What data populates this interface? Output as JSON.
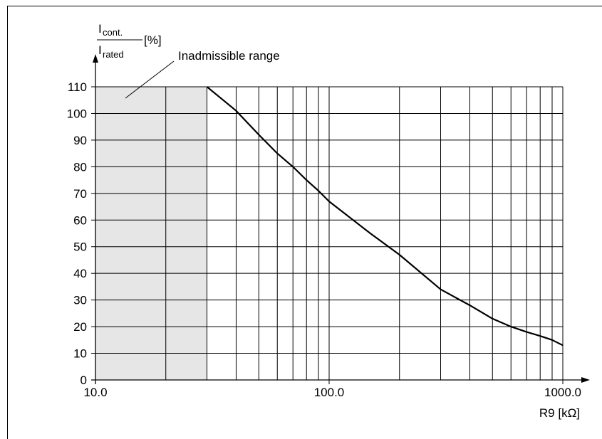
{
  "chart_data": {
    "type": "line",
    "x_scale": "log",
    "xlim": [
      10,
      1000
    ],
    "ylim": [
      0,
      110
    ],
    "x_tick_labels": [
      "10.0",
      "100.0",
      "1000.0"
    ],
    "y_tick_labels": [
      "110",
      "100",
      "90",
      "80",
      "70",
      "60",
      "50",
      "40",
      "30",
      "20",
      "10",
      "0"
    ],
    "y_ticks": [
      110,
      100,
      90,
      80,
      70,
      60,
      50,
      40,
      30,
      20,
      10,
      0
    ],
    "x_ticks": [
      10,
      100,
      1000
    ],
    "xlabel": "R9 [kΩ]",
    "ylabel": {
      "numerator_main": "I",
      "numerator_sub": "cont.",
      "denominator_main": "I",
      "denominator_sub": "rated",
      "unit": "[%]"
    },
    "grid": true,
    "shaded_region": {
      "label": "Inadmissible range",
      "x_range": [
        10,
        30
      ],
      "color": "#e6e6e6"
    },
    "series": [
      {
        "x": [
          30,
          40,
          50,
          60,
          70,
          80,
          90,
          100,
          150,
          200,
          300,
          400,
          500,
          600,
          700,
          800,
          900,
          1000
        ],
        "y": [
          110,
          101,
          92,
          85,
          80,
          75,
          71,
          67,
          55,
          47,
          34,
          28,
          23,
          20,
          18,
          16.5,
          15,
          13
        ]
      }
    ],
    "colors": {
      "line": "#000000",
      "grid": "#000000",
      "shade": "#e6e6e6"
    }
  }
}
